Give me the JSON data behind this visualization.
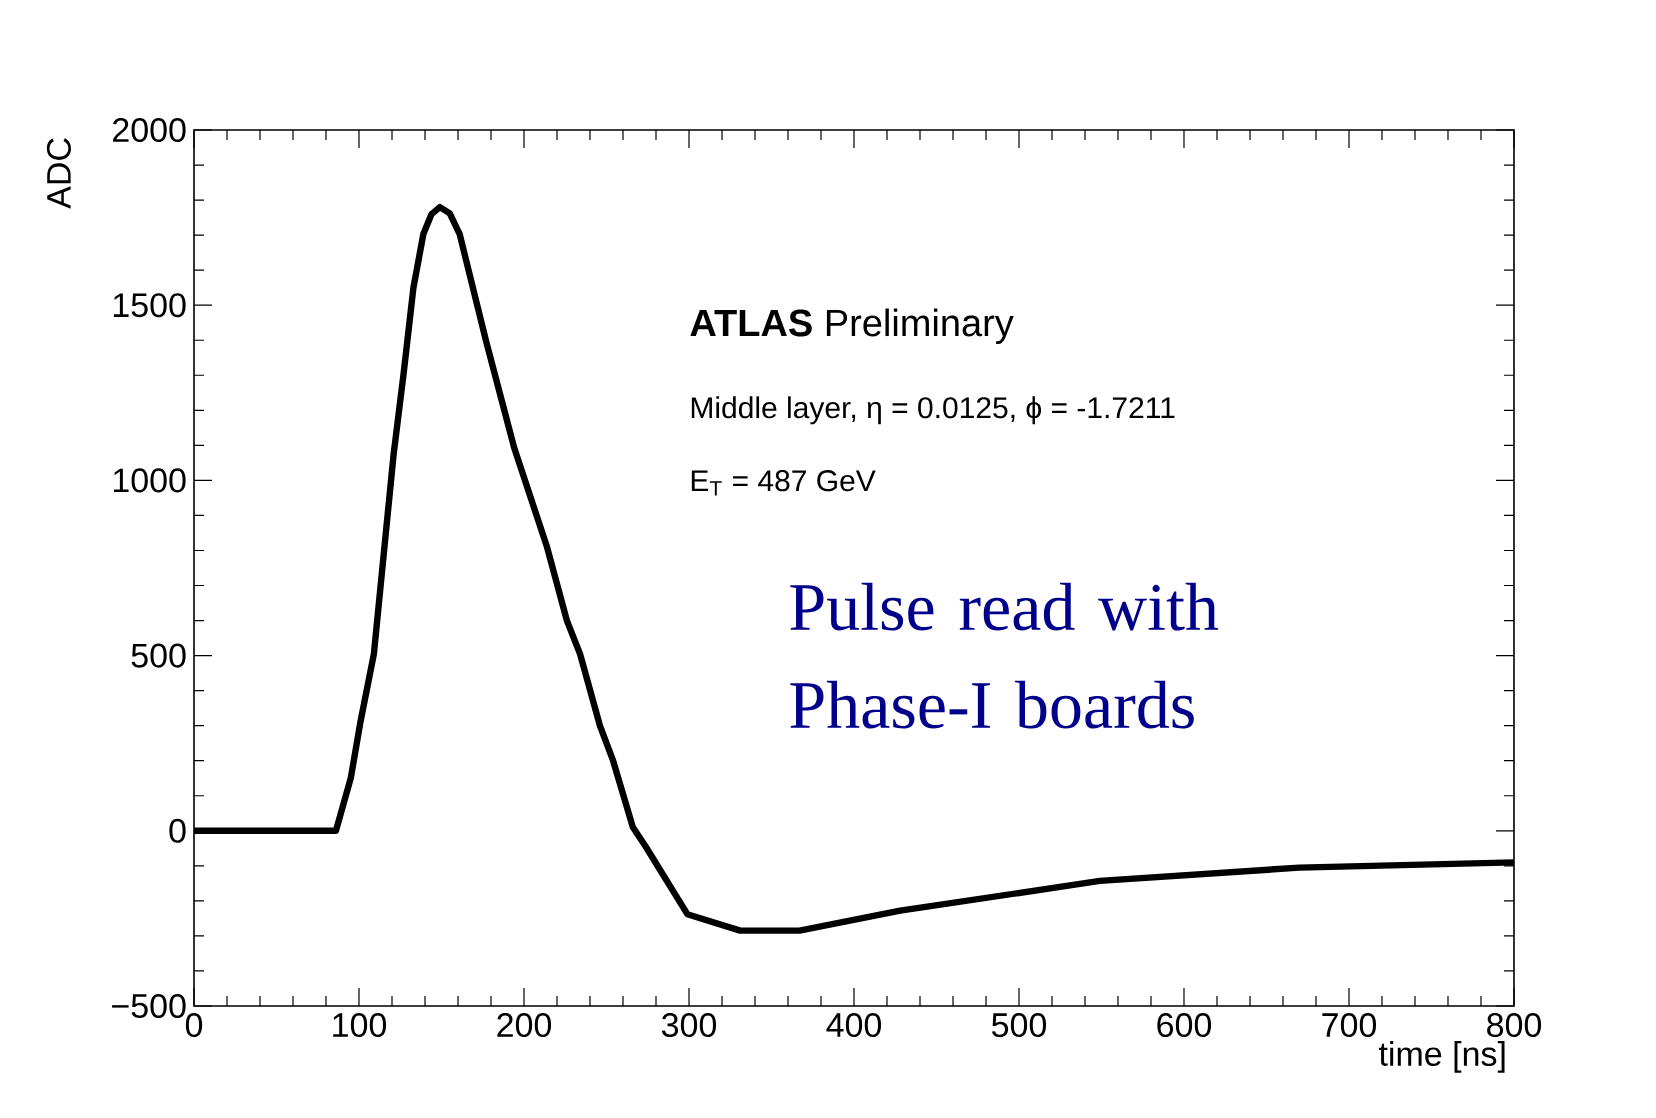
{
  "chart_data": {
    "type": "line",
    "xlabel": "time [ns]",
    "ylabel": "ADC",
    "xlim": [
      0,
      800
    ],
    "ylim": [
      -500,
      2000
    ],
    "xticks": [
      0,
      100,
      200,
      300,
      400,
      500,
      600,
      700,
      800
    ],
    "yticks": [
      {
        "value": -500,
        "label": "−500"
      },
      0,
      500,
      1000,
      1500,
      2000
    ],
    "grid": false,
    "marker": "none",
    "line_style": "solid",
    "series": [
      {
        "color": "#000000",
        "x": [
          0,
          50,
          86,
          95,
          101,
          109,
          115,
          121,
          127,
          133,
          139,
          144,
          149,
          155,
          161,
          177,
          194,
          214,
          226,
          234,
          246,
          254,
          266,
          274,
          299,
          331,
          367,
          428,
          549,
          670,
          800
        ],
        "values": [
          0,
          0,
          0,
          150,
          314,
          504,
          790,
          1075,
          1303,
          1550,
          1703,
          1760,
          1780,
          1762,
          1703,
          1398,
          1094,
          809,
          600,
          504,
          300,
          200,
          10,
          -47,
          -238,
          -285,
          -285,
          -228,
          -143,
          -105,
          -90
        ]
      }
    ],
    "annotations": [
      "**ATLAS** Preliminary",
      "Middle layer, η = 0.0125, ϕ = -1.7211",
      "E$_{T}$ = 487 GeV",
      "Pulse read with Phase-I boards"
    ]
  }
}
